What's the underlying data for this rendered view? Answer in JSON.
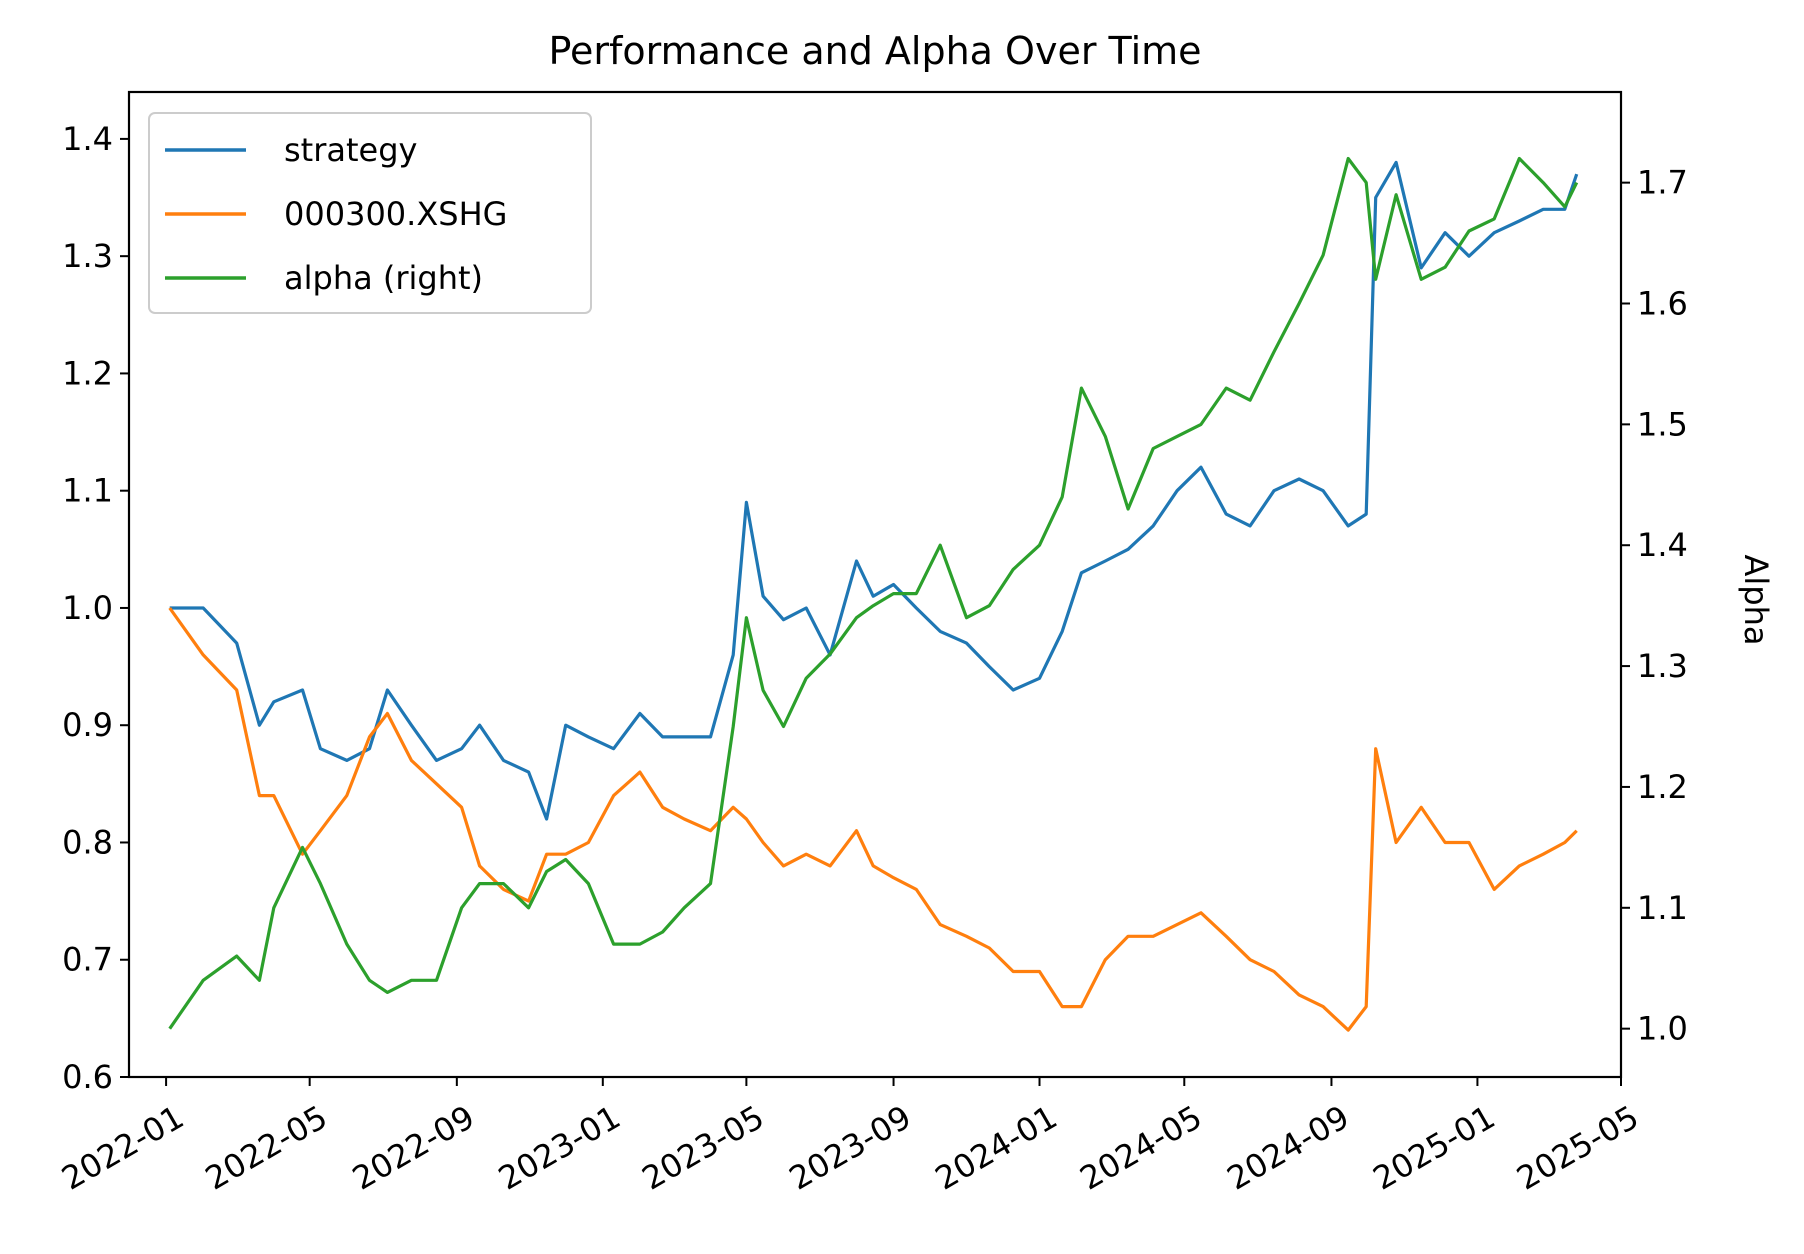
{
  "chart_data": {
    "type": "line",
    "title": "Performance and Alpha Over Time",
    "xlabel": "",
    "ylabel": "",
    "y2label": "Alpha",
    "xlim": [
      "2021-12-01",
      "2025-05-01"
    ],
    "ylim": [
      0.6,
      1.44
    ],
    "y2lim": [
      0.96,
      1.775
    ],
    "xticks": [
      "2022-01",
      "2022-05",
      "2022-09",
      "2023-01",
      "2023-05",
      "2023-09",
      "2024-01",
      "2024-05",
      "2024-09",
      "2025-01",
      "2025-05"
    ],
    "yticks": [
      "0.6",
      "0.7",
      "0.8",
      "0.9",
      "1.0",
      "1.1",
      "1.2",
      "1.3",
      "1.4"
    ],
    "y2ticks": [
      "1.0",
      "1.1",
      "1.2",
      "1.3",
      "1.4",
      "1.5",
      "1.6",
      "1.7"
    ],
    "legend": {
      "placement": "top-left"
    },
    "grid": false,
    "x": [
      "2022-01-04",
      "2022-02-01",
      "2022-03-01",
      "2022-03-20",
      "2022-04-01",
      "2022-04-25",
      "2022-05-10",
      "2022-06-01",
      "2022-06-20",
      "2022-07-05",
      "2022-07-25",
      "2022-08-15",
      "2022-09-05",
      "2022-09-20",
      "2022-10-10",
      "2022-10-31",
      "2022-11-15",
      "2022-12-01",
      "2022-12-20",
      "2023-01-10",
      "2023-02-01",
      "2023-02-20",
      "2023-03-10",
      "2023-04-01",
      "2023-04-20",
      "2023-05-01",
      "2023-05-15",
      "2023-06-01",
      "2023-06-20",
      "2023-07-10",
      "2023-08-01",
      "2023-08-15",
      "2023-09-01",
      "2023-09-20",
      "2023-10-10",
      "2023-11-01",
      "2023-11-20",
      "2023-12-10",
      "2024-01-01",
      "2024-01-20",
      "2024-02-05",
      "2024-02-25",
      "2024-03-15",
      "2024-04-05",
      "2024-04-25",
      "2024-05-15",
      "2024-06-05",
      "2024-06-25",
      "2024-07-15",
      "2024-08-05",
      "2024-08-25",
      "2024-09-15",
      "2024-09-30",
      "2024-10-08",
      "2024-10-25",
      "2024-11-15",
      "2024-12-05",
      "2024-12-25",
      "2025-01-15",
      "2025-02-05",
      "2025-02-25",
      "2025-03-15",
      "2025-03-25"
    ],
    "series": [
      {
        "name": "strategy",
        "color": "#1f77b4",
        "values": [
          1.0,
          1.0,
          0.97,
          0.9,
          0.92,
          0.93,
          0.88,
          0.87,
          0.88,
          0.93,
          0.9,
          0.87,
          0.88,
          0.9,
          0.87,
          0.86,
          0.82,
          0.9,
          0.89,
          0.88,
          0.91,
          0.89,
          0.89,
          0.89,
          0.96,
          1.09,
          1.01,
          0.99,
          1.0,
          0.96,
          1.04,
          1.01,
          1.02,
          1.0,
          0.98,
          0.97,
          0.95,
          0.93,
          0.94,
          0.98,
          1.03,
          1.04,
          1.05,
          1.07,
          1.1,
          1.12,
          1.08,
          1.07,
          1.1,
          1.11,
          1.1,
          1.07,
          1.08,
          1.35,
          1.38,
          1.29,
          1.32,
          1.3,
          1.32,
          1.33,
          1.34,
          1.34,
          1.37
        ]
      },
      {
        "name": "000300.XSHG",
        "color": "#ff7f0e",
        "values": [
          1.0,
          0.96,
          0.93,
          0.84,
          0.84,
          0.79,
          0.81,
          0.84,
          0.89,
          0.91,
          0.87,
          0.85,
          0.83,
          0.78,
          0.76,
          0.75,
          0.79,
          0.79,
          0.8,
          0.84,
          0.86,
          0.83,
          0.82,
          0.81,
          0.83,
          0.82,
          0.8,
          0.78,
          0.79,
          0.78,
          0.81,
          0.78,
          0.77,
          0.76,
          0.73,
          0.72,
          0.71,
          0.69,
          0.69,
          0.66,
          0.66,
          0.7,
          0.72,
          0.72,
          0.73,
          0.74,
          0.72,
          0.7,
          0.69,
          0.67,
          0.66,
          0.64,
          0.66,
          0.88,
          0.8,
          0.83,
          0.8,
          0.8,
          0.76,
          0.78,
          0.79,
          0.8,
          0.81
        ]
      },
      {
        "name": "alpha (right)",
        "color": "#2ca02c",
        "axis": "right",
        "values": [
          1.0,
          1.04,
          1.06,
          1.04,
          1.1,
          1.15,
          1.12,
          1.07,
          1.04,
          1.03,
          1.04,
          1.04,
          1.1,
          1.12,
          1.12,
          1.1,
          1.13,
          1.14,
          1.12,
          1.07,
          1.07,
          1.08,
          1.1,
          1.12,
          1.25,
          1.34,
          1.28,
          1.25,
          1.29,
          1.31,
          1.34,
          1.35,
          1.36,
          1.36,
          1.4,
          1.34,
          1.35,
          1.38,
          1.4,
          1.44,
          1.53,
          1.49,
          1.43,
          1.48,
          1.49,
          1.5,
          1.53,
          1.52,
          1.56,
          1.6,
          1.64,
          1.72,
          1.7,
          1.62,
          1.69,
          1.62,
          1.63,
          1.66,
          1.67,
          1.72,
          1.7,
          1.68,
          1.7
        ]
      }
    ]
  }
}
